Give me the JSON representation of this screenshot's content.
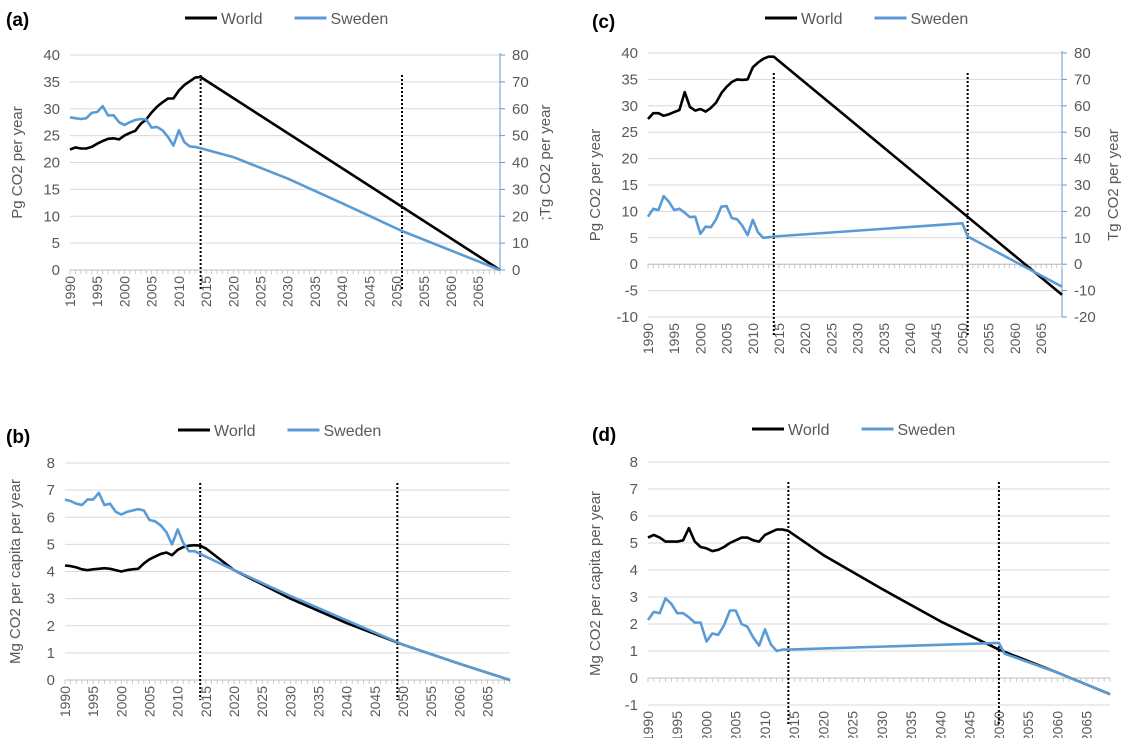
{
  "colors": {
    "world": "#000000",
    "sweden": "#5b9bd5",
    "grid": "#d9d9d9",
    "axis": "#595959"
  },
  "chart_data": [
    {
      "panel_label": "(a)",
      "type": "line",
      "ylabel": "Pg CO2 per year",
      "y2label": ";Tg CO2 per year",
      "xlim": [
        1990,
        2069
      ],
      "ylim": [
        0,
        40
      ],
      "ytick_step": 5,
      "y2lim": [
        0,
        80
      ],
      "y2tick_step": 10,
      "grid": true,
      "legend_position": "top",
      "xticks": [
        1990,
        1995,
        2000,
        2005,
        2010,
        2015,
        2020,
        2025,
        2030,
        2035,
        2040,
        2045,
        2050,
        2055,
        2060,
        2065
      ],
      "vlines": [
        2014,
        2051
      ],
      "series": [
        {
          "name": "World",
          "axis": "left",
          "color": "#000000",
          "x": [
            1990,
            1991,
            1992,
            1993,
            1994,
            1995,
            1996,
            1997,
            1998,
            1999,
            2000,
            2001,
            2002,
            2003,
            2004,
            2005,
            2006,
            2007,
            2008,
            2009,
            2010,
            2011,
            2012,
            2013,
            2014,
            2069
          ],
          "y": [
            22.4,
            22.8,
            22.6,
            22.6,
            22.9,
            23.5,
            24.0,
            24.4,
            24.5,
            24.3,
            25.0,
            25.5,
            25.9,
            27.2,
            28.0,
            29.3,
            30.4,
            31.2,
            31.9,
            31.9,
            33.4,
            34.4,
            35.1,
            35.8,
            35.9,
            0
          ]
        },
        {
          "name": "Sweden",
          "axis": "right",
          "color": "#5b9bd5",
          "x": [
            1990,
            1991,
            1992,
            1993,
            1994,
            1995,
            1996,
            1997,
            1998,
            1999,
            2000,
            2001,
            2002,
            2003,
            2004,
            2005,
            2006,
            2007,
            2008,
            2009,
            2010,
            2011,
            2012,
            2013,
            2014,
            2020,
            2030,
            2040,
            2051,
            2069
          ],
          "y": [
            56.8,
            56.5,
            56.2,
            56.5,
            58.5,
            58.8,
            61.0,
            57.5,
            57.6,
            55.0,
            54.0,
            55.0,
            55.8,
            56.2,
            56.0,
            53.0,
            53.2,
            52.0,
            49.5,
            46.3,
            52.0,
            47.6,
            46.0,
            45.8,
            45.3,
            42.0,
            34.0,
            24.8,
            14.5,
            0
          ]
        }
      ]
    },
    {
      "panel_label": "(b)",
      "type": "line",
      "ylabel": "Mg CO2 per capita per year",
      "xlim": [
        1990,
        2069
      ],
      "ylim": [
        0,
        8
      ],
      "ytick_step": 1,
      "grid": true,
      "legend_position": "top",
      "xticks": [
        1990,
        1995,
        2000,
        2005,
        2010,
        2015,
        2020,
        2025,
        2030,
        2035,
        2040,
        2045,
        2050,
        2055,
        2060,
        2065
      ],
      "vlines": [
        2014,
        2049
      ],
      "series": [
        {
          "name": "World",
          "color": "#000000",
          "x": [
            1990,
            1991,
            1992,
            1993,
            1994,
            1995,
            1996,
            1997,
            1998,
            1999,
            2000,
            2001,
            2002,
            2003,
            2004,
            2005,
            2006,
            2007,
            2008,
            2009,
            2010,
            2011,
            2012,
            2013,
            2014,
            2015,
            2020,
            2030,
            2040,
            2050,
            2060,
            2069
          ],
          "y": [
            4.22,
            4.2,
            4.15,
            4.08,
            4.05,
            4.08,
            4.1,
            4.12,
            4.1,
            4.05,
            4.0,
            4.05,
            4.08,
            4.1,
            4.3,
            4.45,
            4.55,
            4.65,
            4.7,
            4.6,
            4.8,
            4.9,
            4.95,
            4.97,
            4.95,
            4.85,
            4.05,
            3.0,
            2.1,
            1.3,
            0.6,
            0
          ]
        },
        {
          "name": "Sweden",
          "color": "#5b9bd5",
          "x": [
            1990,
            1991,
            1992,
            1993,
            1994,
            1995,
            1996,
            1997,
            1998,
            1999,
            2000,
            2001,
            2002,
            2003,
            2004,
            2005,
            2006,
            2007,
            2008,
            2009,
            2010,
            2011,
            2012,
            2013,
            2014,
            2020,
            2030,
            2040,
            2050,
            2060,
            2069
          ],
          "y": [
            6.65,
            6.6,
            6.5,
            6.45,
            6.65,
            6.65,
            6.9,
            6.45,
            6.5,
            6.2,
            6.1,
            6.2,
            6.25,
            6.3,
            6.25,
            5.9,
            5.85,
            5.7,
            5.45,
            5.0,
            5.55,
            5.05,
            4.75,
            4.75,
            4.65,
            4.05,
            3.1,
            2.2,
            1.3,
            0.6,
            0
          ]
        }
      ]
    },
    {
      "panel_label": "(c)",
      "type": "line",
      "ylabel": "Pg CO2 per year",
      "y2label": "Tg CO2 per year",
      "xlim": [
        1990,
        2069
      ],
      "ylim": [
        -10,
        40
      ],
      "ytick_step": 5,
      "y2lim": [
        -20,
        80
      ],
      "y2tick_step": 10,
      "grid": true,
      "legend_position": "top",
      "xticks": [
        1990,
        1995,
        2000,
        2005,
        2010,
        2015,
        2020,
        2025,
        2030,
        2035,
        2040,
        2045,
        2050,
        2055,
        2060,
        2065
      ],
      "vlines": [
        2014,
        2051
      ],
      "series": [
        {
          "name": "World",
          "axis": "left",
          "color": "#000000",
          "x": [
            1990,
            1991,
            1992,
            1993,
            1994,
            1995,
            1996,
            1997,
            1998,
            1999,
            2000,
            2001,
            2002,
            2003,
            2004,
            2005,
            2006,
            2007,
            2008,
            2009,
            2010,
            2011,
            2012,
            2013,
            2014,
            2069
          ],
          "y": [
            27.5,
            28.6,
            28.6,
            28.1,
            28.4,
            28.8,
            29.2,
            32.6,
            29.8,
            29.1,
            29.4,
            28.9,
            29.6,
            30.6,
            32.4,
            33.6,
            34.5,
            35.0,
            34.9,
            35.0,
            37.3,
            38.2,
            38.9,
            39.3,
            39.3,
            -5.8
          ]
        },
        {
          "name": "Sweden",
          "axis": "right",
          "color": "#5b9bd5",
          "x": [
            1990,
            1991,
            1992,
            1993,
            1994,
            1995,
            1996,
            1997,
            1998,
            1999,
            2000,
            2001,
            2002,
            2003,
            2004,
            2005,
            2006,
            2007,
            2008,
            2009,
            2010,
            2011,
            2012,
            2013,
            2014,
            2050,
            2051,
            2069
          ],
          "y": [
            18.0,
            21.0,
            20.5,
            25.8,
            23.6,
            20.5,
            21.0,
            19.5,
            17.8,
            18.0,
            11.5,
            14.2,
            14.0,
            17.0,
            21.8,
            22.0,
            17.5,
            17.0,
            14.6,
            11.0,
            16.8,
            12.0,
            10.0,
            10.2,
            10.5,
            15.5,
            10.5,
            -8.5
          ]
        }
      ]
    },
    {
      "panel_label": "(d)",
      "type": "line",
      "ylabel": "Mg CO2 per capita per year",
      "xlim": [
        1990,
        2069
      ],
      "ylim": [
        -1,
        8
      ],
      "ytick_step": 1,
      "grid": true,
      "legend_position": "top",
      "xticks": [
        1990,
        1995,
        2000,
        2005,
        2010,
        2015,
        2020,
        2025,
        2030,
        2035,
        2040,
        2045,
        2050,
        2055,
        2060,
        2065
      ],
      "vlines": [
        2014,
        2050
      ],
      "series": [
        {
          "name": "World",
          "color": "#000000",
          "x": [
            1990,
            1991,
            1992,
            1993,
            1994,
            1995,
            1996,
            1997,
            1998,
            1999,
            2000,
            2001,
            2002,
            2003,
            2004,
            2005,
            2006,
            2007,
            2008,
            2009,
            2010,
            2011,
            2012,
            2013,
            2014,
            2015,
            2020,
            2030,
            2040,
            2050,
            2060,
            2069
          ],
          "y": [
            5.2,
            5.3,
            5.2,
            5.05,
            5.05,
            5.05,
            5.1,
            5.55,
            5.05,
            4.85,
            4.8,
            4.7,
            4.75,
            4.85,
            5.0,
            5.1,
            5.2,
            5.2,
            5.1,
            5.05,
            5.3,
            5.4,
            5.5,
            5.5,
            5.45,
            5.3,
            4.55,
            3.3,
            2.1,
            1.05,
            0.2,
            -0.6
          ]
        },
        {
          "name": "Sweden",
          "color": "#5b9bd5",
          "x": [
            1990,
            1991,
            1992,
            1993,
            1994,
            1995,
            1996,
            1997,
            1998,
            1999,
            2000,
            2001,
            2002,
            2003,
            2004,
            2005,
            2006,
            2007,
            2008,
            2009,
            2010,
            2011,
            2012,
            2013,
            2014,
            2050,
            2051,
            2060,
            2069
          ],
          "y": [
            2.15,
            2.45,
            2.4,
            2.95,
            2.75,
            2.4,
            2.4,
            2.25,
            2.05,
            2.05,
            1.35,
            1.65,
            1.6,
            1.95,
            2.5,
            2.5,
            2.0,
            1.9,
            1.5,
            1.2,
            1.8,
            1.25,
            1.0,
            1.05,
            1.05,
            1.3,
            0.9,
            0.2,
            -0.6
          ]
        }
      ]
    }
  ]
}
